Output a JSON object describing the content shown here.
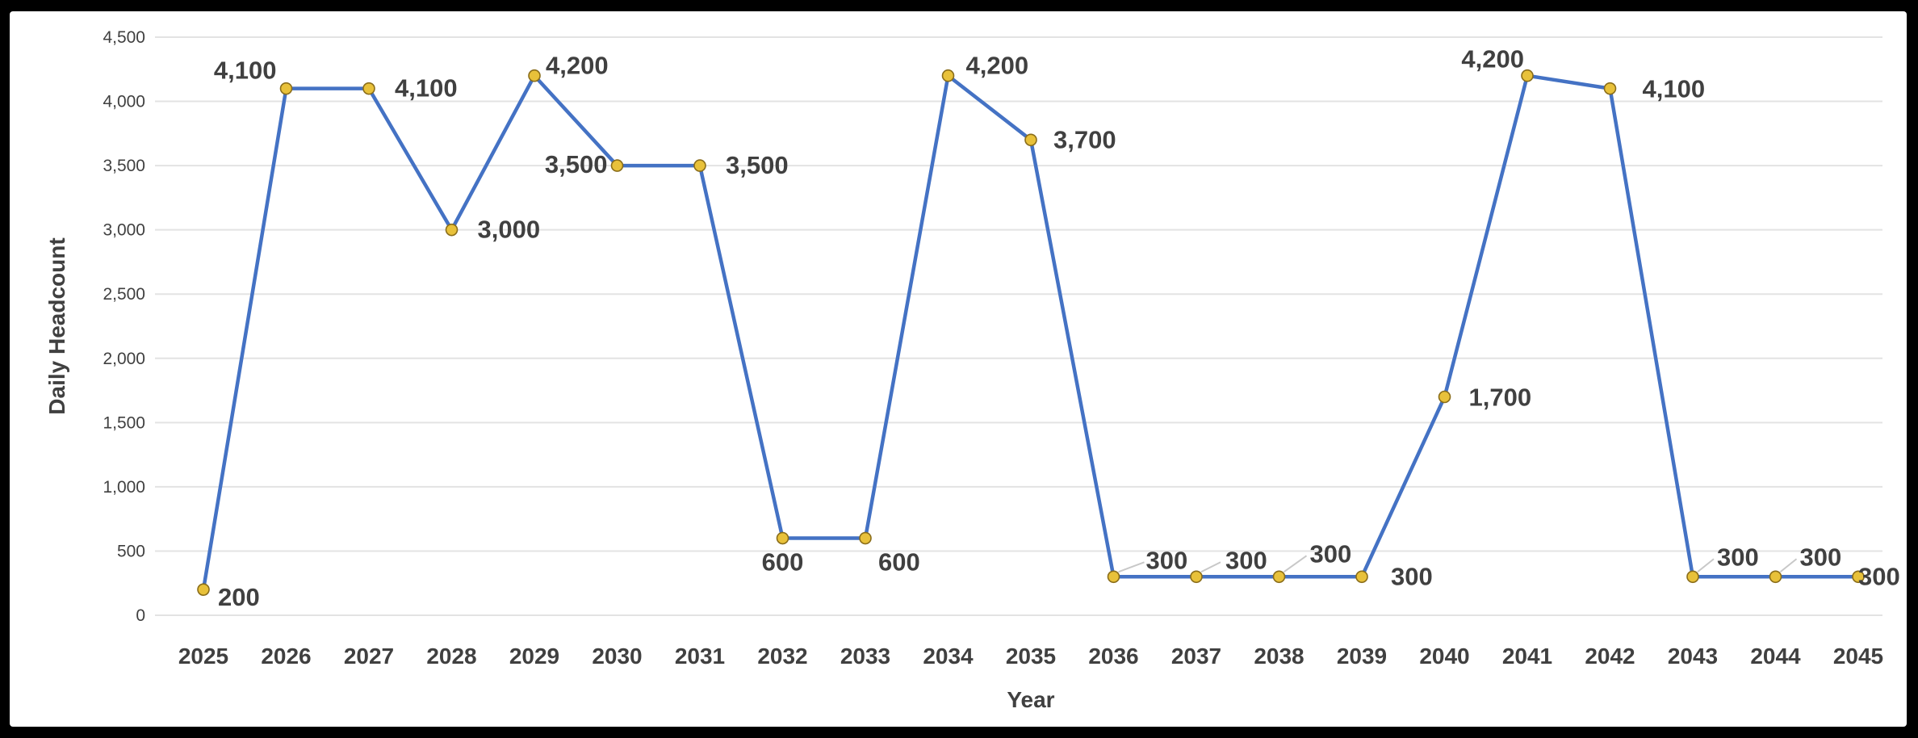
{
  "chart_data": {
    "type": "line",
    "title": "",
    "xlabel": "Year",
    "ylabel": "Daily Headcount",
    "categories": [
      "2025",
      "2026",
      "2027",
      "2028",
      "2029",
      "2030",
      "2031",
      "2032",
      "2033",
      "2034",
      "2035",
      "2036",
      "2037",
      "2038",
      "2039",
      "2040",
      "2041",
      "2042",
      "2043",
      "2044",
      "2045"
    ],
    "series": [
      {
        "values": [
          200,
          4100,
          4100,
          3000,
          4200,
          3500,
          3500,
          600,
          600,
          4200,
          3700,
          300,
          300,
          300,
          300,
          1700,
          4200,
          4100,
          300,
          300,
          300
        ],
        "data_labels": [
          "200",
          "4,100",
          "4,100",
          "3,000",
          "4,200",
          "3,500",
          "3,500",
          "600",
          "600",
          "4,200",
          "3,700",
          "300",
          "300",
          "300",
          "300",
          "1,700",
          "4,200",
          "4,100",
          "300",
          "300",
          "300"
        ]
      }
    ],
    "y_ticks": [
      "0",
      "500",
      "1,000",
      "1,500",
      "2,000",
      "2,500",
      "3,000",
      "3,500",
      "4,000",
      "4,500"
    ],
    "ylim": [
      0,
      4500
    ],
    "grid": true,
    "legend": "none",
    "colors": {
      "line": "#4472C4",
      "marker_fill": "#E8C13A",
      "marker_edge": "#8A6D1A"
    }
  }
}
